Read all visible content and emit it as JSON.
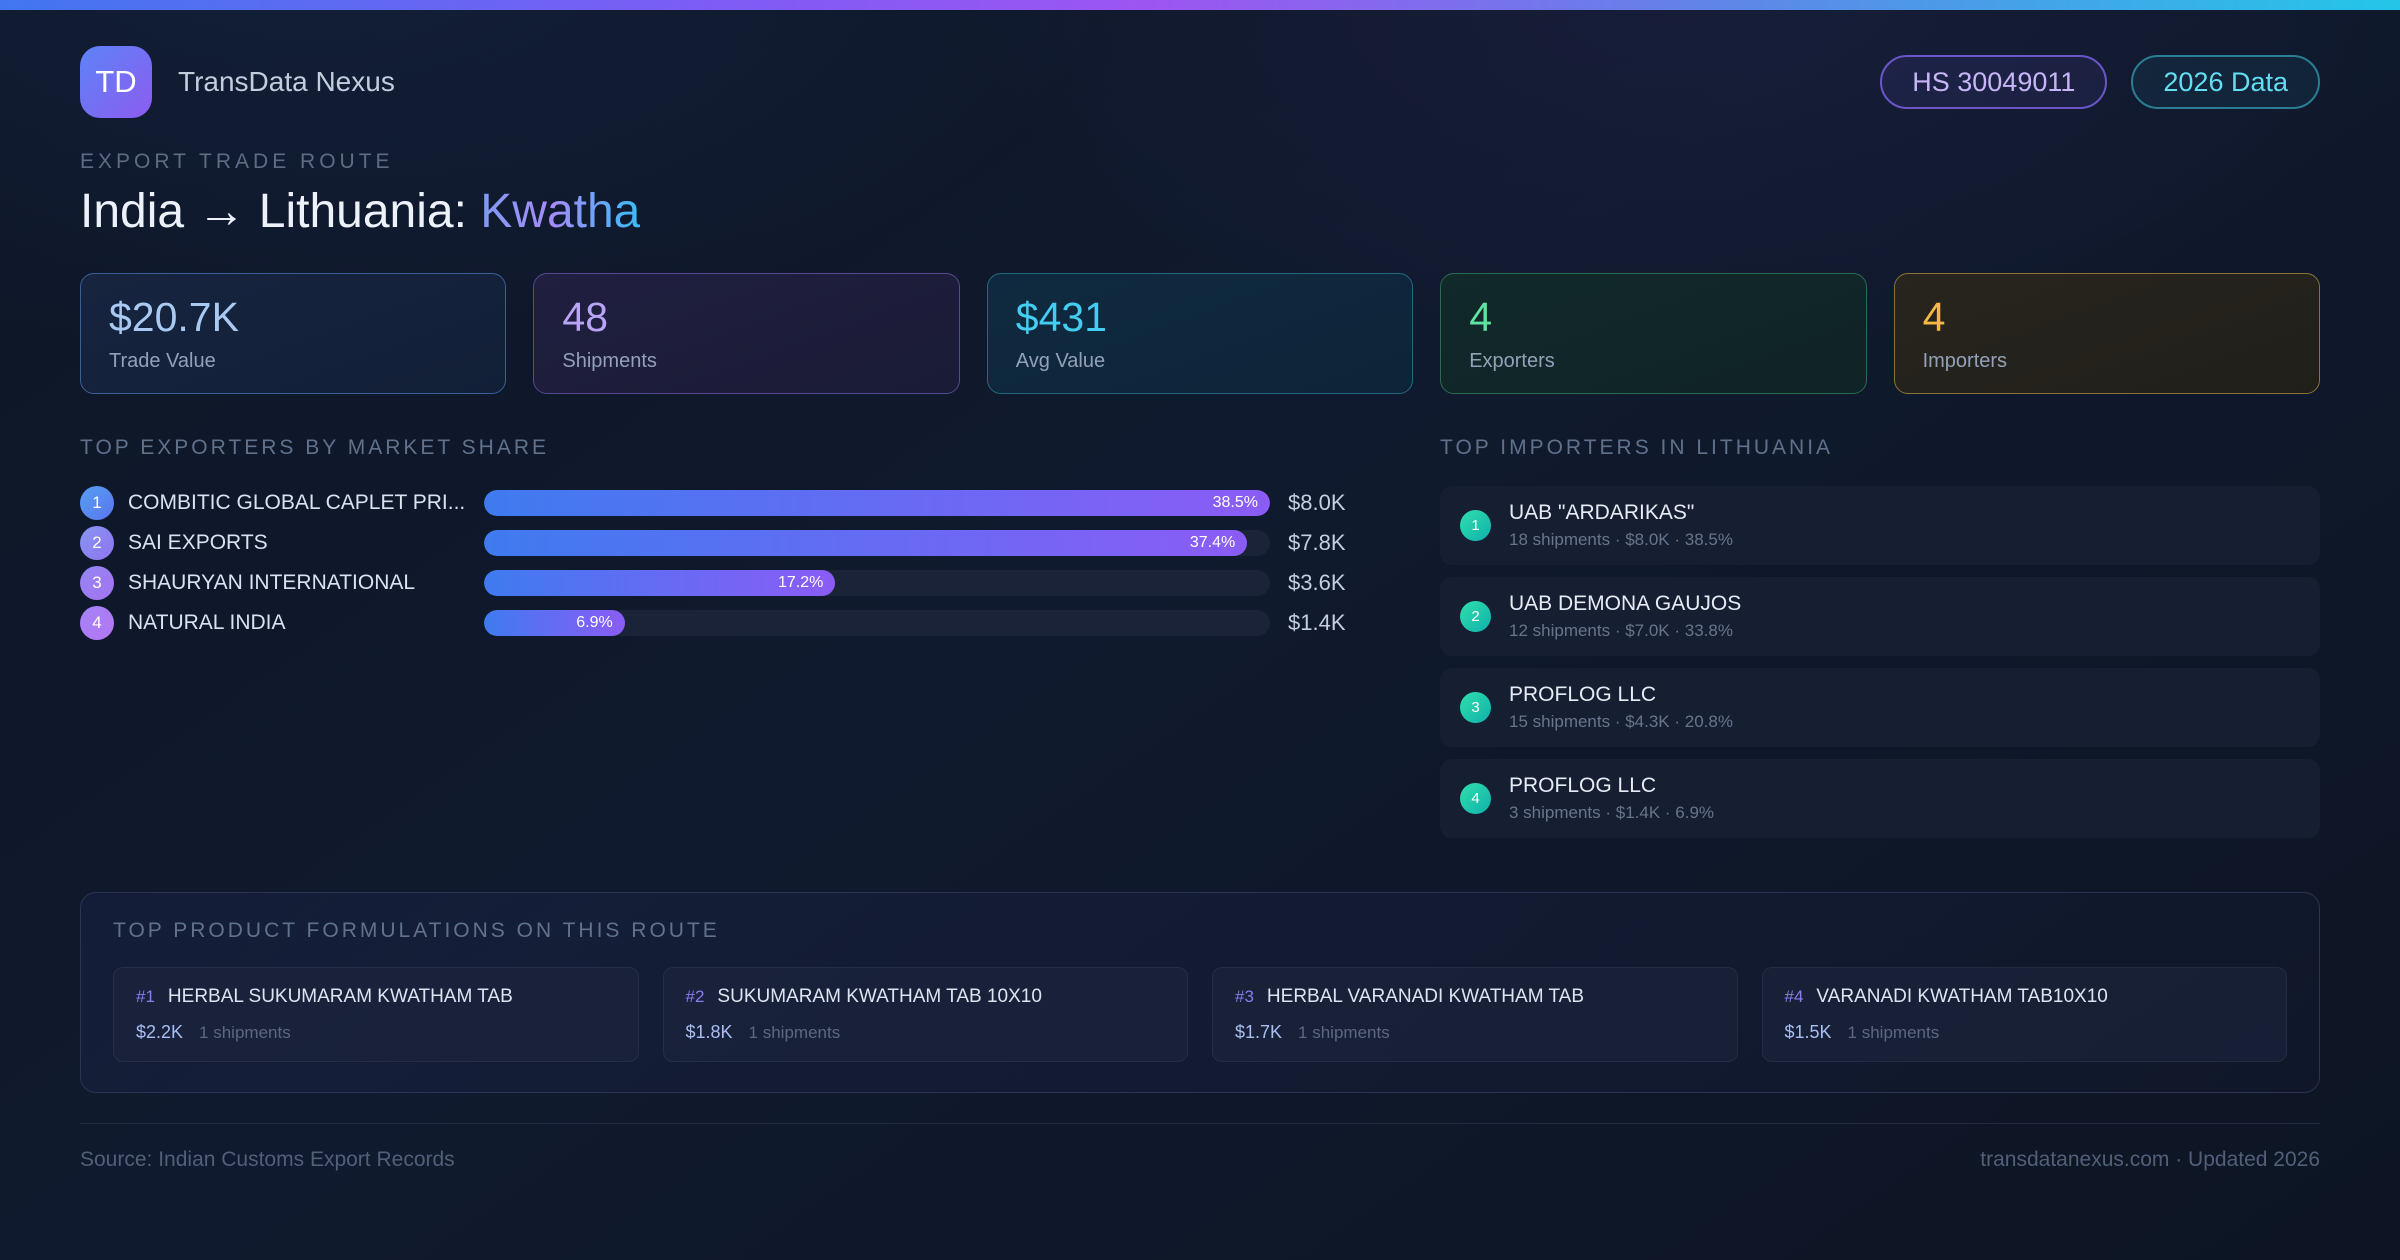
{
  "colors": {
    "accent_blue": "#3b82f6",
    "accent_purple": "#8b5cf6",
    "accent_cyan": "#22d3ee",
    "accent_green": "#34d399",
    "accent_amber": "#f4b942",
    "badge_teal": "#14b8a6",
    "background": "#0e1626"
  },
  "header": {
    "logo_text": "TD",
    "app_name": "TransData Nexus",
    "hs_badge": "HS 30049011",
    "year_badge": "2026 Data"
  },
  "hero": {
    "kicker": "EXPORT TRADE ROUTE",
    "title_main": "India → Lithuania: ",
    "title_highlight": "Kwatha"
  },
  "stats": [
    {
      "value": "$20.7K",
      "label": "Trade Value"
    },
    {
      "value": "48",
      "label": "Shipments"
    },
    {
      "value": "$431",
      "label": "Avg Value"
    },
    {
      "value": "4",
      "label": "Exporters"
    },
    {
      "value": "4",
      "label": "Importers"
    }
  ],
  "exporters": {
    "heading": "TOP EXPORTERS BY MARKET SHARE",
    "items": [
      {
        "rank": "1",
        "name": "COMBITIC GLOBAL CAPLET PRI...",
        "share_pct": 38.5,
        "share_label": "38.5%",
        "value": "$8.0K"
      },
      {
        "rank": "2",
        "name": "SAI EXPORTS",
        "share_pct": 37.4,
        "share_label": "37.4%",
        "value": "$7.8K"
      },
      {
        "rank": "3",
        "name": "SHAURYAN INTERNATIONAL",
        "share_pct": 17.2,
        "share_label": "17.2%",
        "value": "$3.6K"
      },
      {
        "rank": "4",
        "name": "NATURAL INDIA",
        "share_pct": 6.9,
        "share_label": "6.9%",
        "value": "$1.4K"
      }
    ]
  },
  "importers": {
    "heading": "TOP IMPORTERS IN LITHUANIA",
    "items": [
      {
        "rank": "1",
        "name": "UAB \"ARDARIKAS\"",
        "meta": "18 shipments · $8.0K · 38.5%"
      },
      {
        "rank": "2",
        "name": "UAB DEMONA GAUJOS",
        "meta": "12 shipments · $7.0K · 33.8%"
      },
      {
        "rank": "3",
        "name": "PROFLOG LLC",
        "meta": "15 shipments · $4.3K · 20.8%"
      },
      {
        "rank": "4",
        "name": "PROFLOG LLC",
        "meta": "3 shipments · $1.4K · 6.9%"
      }
    ]
  },
  "products": {
    "heading": "TOP PRODUCT FORMULATIONS ON THIS ROUTE",
    "items": [
      {
        "rank": "#1",
        "name": "HERBAL SUKUMARAM KWATHAM TAB",
        "value": "$2.2K",
        "shipments": "1 shipments"
      },
      {
        "rank": "#2",
        "name": "SUKUMARAM KWATHAM TAB 10X10",
        "value": "$1.8K",
        "shipments": "1 shipments"
      },
      {
        "rank": "#3",
        "name": "HERBAL VARANADI KWATHAM TAB",
        "value": "$1.7K",
        "shipments": "1 shipments"
      },
      {
        "rank": "#4",
        "name": "VARANADI KWATHAM TAB10X10",
        "value": "$1.5K",
        "shipments": "1 shipments"
      }
    ]
  },
  "footer": {
    "source": "Source: Indian Customs Export Records",
    "site": "transdatanexus.com · Updated 2026"
  },
  "chart_data": {
    "type": "bar",
    "title": "Top Exporters by Market Share",
    "categories": [
      "COMBITIC GLOBAL CAPLET PRI...",
      "SAI EXPORTS",
      "SHAURYAN INTERNATIONAL",
      "NATURAL INDIA"
    ],
    "values": [
      38.5,
      37.4,
      17.2,
      6.9
    ],
    "value_labels": [
      "$8.0K",
      "$7.8K",
      "$3.6K",
      "$1.4K"
    ],
    "xlabel": "Market share (%)",
    "ylabel": "",
    "xlim": [
      0,
      38.5
    ],
    "orientation": "horizontal",
    "grid": false,
    "legend": false
  }
}
